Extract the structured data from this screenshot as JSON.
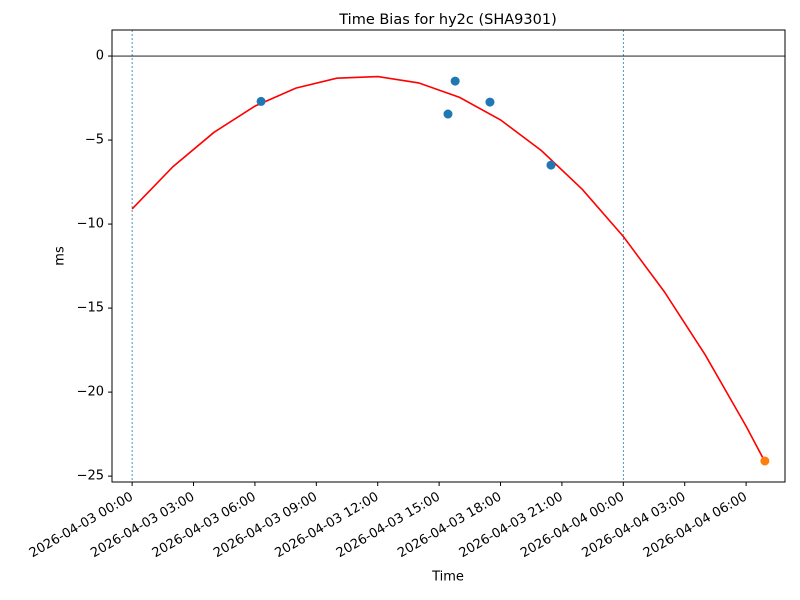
{
  "chart_data": {
    "type": "line_scatter",
    "title": "Time Bias for hy2c (SHA9301)",
    "x_label": "Time",
    "y_label": "ms",
    "xlim": [
      "2026-04-02 23:01",
      "2026-04-04 07:54"
    ],
    "ylim": [
      -25.35,
      1.55
    ],
    "xticks": [
      "2026-04-03 00:00",
      "2026-04-03 03:00",
      "2026-04-03 06:00",
      "2026-04-03 09:00",
      "2026-04-03 12:00",
      "2026-04-03 15:00",
      "2026-04-03 18:00",
      "2026-04-03 21:00",
      "2026-04-04 00:00",
      "2026-04-04 03:00",
      "2026-04-04 06:00"
    ],
    "yticks": [
      0,
      {
        "value": -5,
        "label": "−5"
      },
      {
        "value": -10,
        "label": "−10"
      },
      {
        "value": -15,
        "label": "−15"
      },
      {
        "value": -20,
        "label": "−20"
      },
      {
        "value": -25,
        "label": "−25"
      }
    ],
    "hline": 0,
    "vlines": [
      "2026-04-03 00:00",
      "2026-04-04 00:00"
    ],
    "fit": {
      "color": "#ff0000",
      "x": [
        "2026-04-03 00:00",
        "2026-04-03 02:00",
        "2026-04-03 04:00",
        "2026-04-03 06:00",
        "2026-04-03 08:00",
        "2026-04-03 10:00",
        "2026-04-03 12:00",
        "2026-04-03 14:00",
        "2026-04-03 16:00",
        "2026-04-03 18:00",
        "2026-04-03 20:00",
        "2026-04-03 22:00",
        "2026-04-04 00:00",
        "2026-04-04 02:00",
        "2026-04-04 04:00",
        "2026-04-04 06:00",
        "2026-04-04 06:55"
      ],
      "values": [
        -9.1,
        -6.58,
        -4.54,
        -2.98,
        -1.91,
        -1.32,
        -1.22,
        -1.6,
        -2.46,
        -3.8,
        -5.63,
        -7.94,
        -10.74,
        -14.02,
        -17.78,
        -22.03,
        -24.14
      ]
    },
    "series": [
      {
        "color": "#1f77b4",
        "x": [
          "2026-04-03 06:18",
          "2026-04-03 15:26",
          "2026-04-03 15:47",
          "2026-04-03 17:29",
          "2026-04-03 20:28"
        ],
        "values": [
          -2.7,
          -3.45,
          -1.49,
          -2.74,
          -6.49
        ]
      },
      {
        "color": "#ff7f0e",
        "x": [
          "2026-04-04 06:55"
        ],
        "values": [
          -24.1
        ]
      }
    ]
  }
}
